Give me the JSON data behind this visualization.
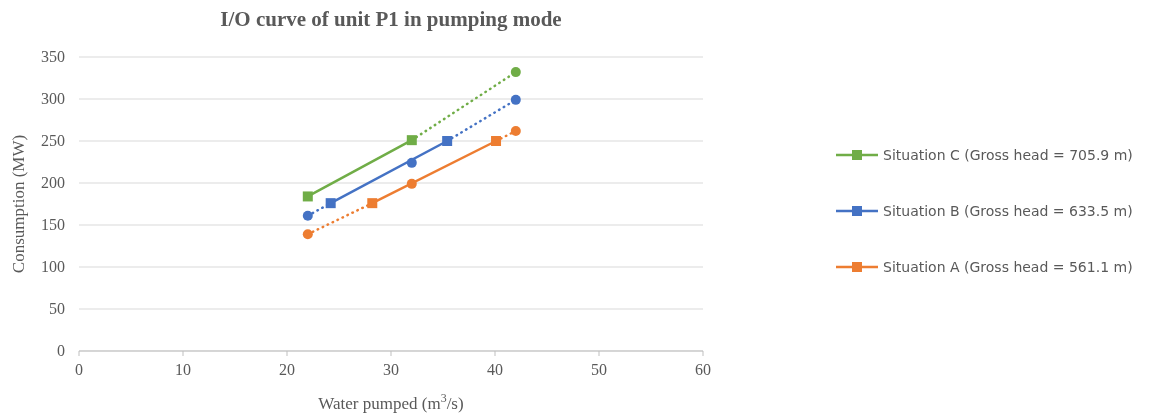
{
  "chart_data": {
    "type": "line",
    "title": "I/O curve of unit P1 in pumping mode",
    "xlabel": "Water pumped (m$^{3}$/s)",
    "ylabel": "Consumption (MW)",
    "xlim": [
      0,
      60
    ],
    "xticks": [
      0,
      10,
      20,
      30,
      40,
      50,
      60
    ],
    "ylim": [
      0,
      350
    ],
    "yticks": [
      0,
      50,
      100,
      150,
      200,
      250,
      300,
      350
    ],
    "grid": "y",
    "legend": "right",
    "series": [
      {
        "name": "Situation C (Gross head = 705.9 m)",
        "color": "#70ad47",
        "x": [
          22,
          32
        ],
        "values": [
          184,
          251
        ],
        "marker": "square",
        "line_style": "solid"
      },
      {
        "name": "Situation B (Gross head = 633.5 m)",
        "color": "#4472c4",
        "x": [
          24.2,
          35.4
        ],
        "values": [
          176,
          250
        ],
        "marker": "square",
        "line_style": "solid"
      },
      {
        "name": "Situation A (Gross head = 561.1 m)",
        "color": "#ed7d31",
        "x": [
          28.2,
          40.1
        ],
        "values": [
          176,
          250
        ],
        "marker": "square",
        "line_style": "solid"
      },
      {
        "color": "#70ad47",
        "x": [
          32,
          42
        ],
        "values": [
          251,
          332
        ],
        "marker": "none",
        "line_style": "dotted"
      },
      {
        "color": "#4472c4",
        "x": [
          22,
          24.2,
          null,
          35.4,
          42
        ],
        "values": [
          161,
          176,
          null,
          250,
          299
        ],
        "marker": "none",
        "line_style": "dotted"
      },
      {
        "color": "#ed7d31",
        "x": [
          22,
          28.2,
          null,
          40.1,
          42
        ],
        "values": [
          139,
          176,
          null,
          250,
          262
        ],
        "marker": "none",
        "line_style": "dotted"
      },
      {
        "type": "scatter",
        "color": "#70ad47",
        "x": [
          42
        ],
        "values": [
          332
        ],
        "marker": "circle"
      },
      {
        "type": "scatter",
        "color": "#4472c4",
        "x": [
          22,
          32,
          42
        ],
        "values": [
          161,
          224,
          299
        ],
        "marker": "circle"
      },
      {
        "type": "scatter",
        "color": "#ed7d31",
        "x": [
          22,
          32,
          42
        ],
        "values": [
          139,
          199,
          262
        ],
        "marker": "circle"
      }
    ]
  }
}
